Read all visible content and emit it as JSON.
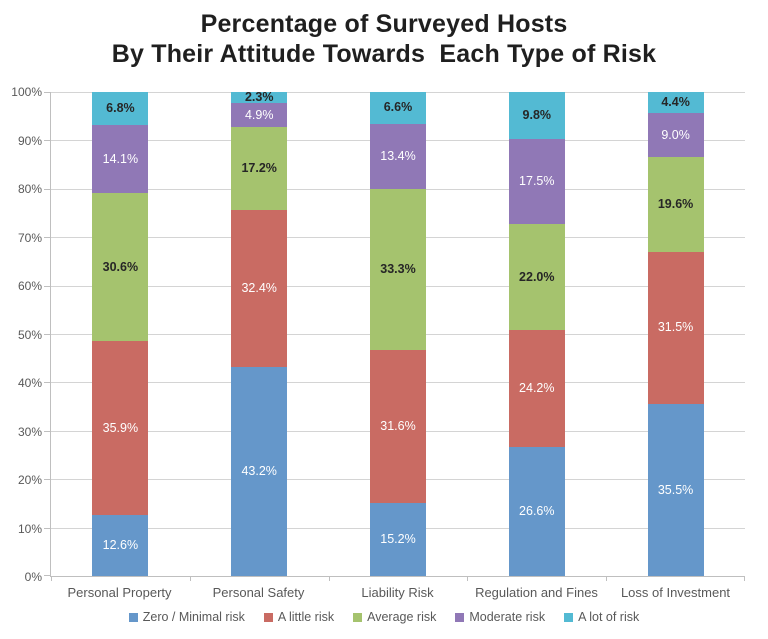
{
  "title": {
    "line1": "Percentage of Surveyed Hosts",
    "line2": "By Their Attitude Towards  Each Type of Risk"
  },
  "chart_data": {
    "type": "bar",
    "stacked": true,
    "title": "Percentage of Surveyed Hosts By Their Attitude Towards Each Type of Risk",
    "categories": [
      "Personal Property",
      "Personal Safety",
      "Liability Risk",
      "Regulation and Fines",
      "Loss of Investment"
    ],
    "series": [
      {
        "name": "Zero / Minimal risk",
        "color": "#6597CA",
        "label_color": "#FFFFFF",
        "label_bold": false,
        "values": [
          12.6,
          43.2,
          15.2,
          26.6,
          35.5
        ]
      },
      {
        "name": "A little risk",
        "color": "#C96B63",
        "label_color": "#FFFFFF",
        "label_bold": false,
        "values": [
          35.9,
          32.4,
          31.6,
          24.2,
          31.5
        ]
      },
      {
        "name": "Average risk",
        "color": "#A5C36E",
        "label_color": "#262626",
        "label_bold": true,
        "values": [
          30.6,
          17.2,
          33.3,
          22.0,
          19.6
        ]
      },
      {
        "name": "Moderate risk",
        "color": "#9078B6",
        "label_color": "#FFFFFF",
        "label_bold": false,
        "values": [
          14.1,
          4.9,
          13.4,
          17.5,
          9.0
        ]
      },
      {
        "name": "A lot of risk",
        "color": "#53BAD3",
        "label_color": "#262626",
        "label_bold": true,
        "values": [
          6.8,
          2.3,
          6.6,
          9.8,
          4.4
        ]
      }
    ],
    "y_ticks": [
      "0%",
      "10%",
      "20%",
      "30%",
      "40%",
      "50%",
      "60%",
      "70%",
      "80%",
      "90%",
      "100%"
    ],
    "ylim": [
      0,
      100
    ],
    "grid": true,
    "legend_position": "bottom",
    "value_suffix": "%",
    "colors": {
      "gridline": "#D4D4D4",
      "axis": "#BFBFBF",
      "tick_text": "#595959",
      "title_text": "#1F1F1F"
    }
  }
}
